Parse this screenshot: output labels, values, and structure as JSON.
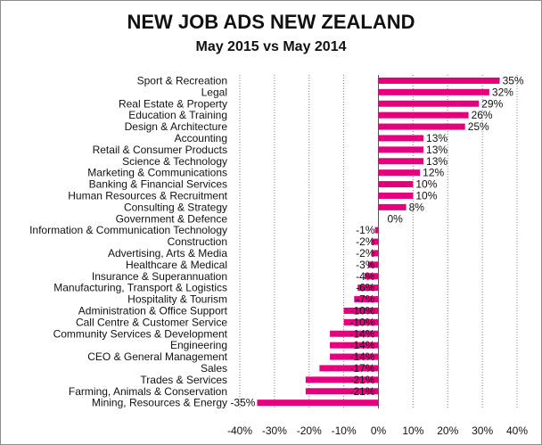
{
  "chart_data": {
    "type": "bar",
    "orientation": "horizontal",
    "title": "NEW JOB ADS NEW ZEALAND",
    "subtitle": "May 2015 vs May 2014",
    "categories": [
      "Sport & Recreation",
      "Legal",
      "Real Estate & Property",
      "Education & Training",
      "Design & Architecture",
      "Accounting",
      "Retail & Consumer Products",
      "Science & Technology",
      "Marketing & Communications",
      "Banking & Financial Services",
      "Human Resources & Recruitment",
      "Consulting & Strategy",
      "Government & Defence",
      "Information & Communication Technology",
      "Construction",
      "Advertising, Arts & Media",
      "Healthcare & Medical",
      "Insurance & Superannuation",
      "Manufacturing, Transport & Logistics",
      "Hospitality & Tourism",
      "Administration & Office Support",
      "Call Centre & Customer Service",
      "Community Services & Development",
      "Engineering",
      "CEO & General Management",
      "Sales",
      "Trades & Services",
      "Farming, Animals & Conservation",
      "Mining, Resources & Energy"
    ],
    "values": [
      35,
      32,
      29,
      26,
      25,
      13,
      13,
      13,
      12,
      10,
      10,
      8,
      0,
      -1,
      -2,
      -2,
      -3,
      -4,
      -6,
      -7,
      -10,
      -10,
      -14,
      -14,
      -14,
      -17,
      -21,
      -21,
      -35
    ],
    "value_labels": [
      "35%",
      "32%",
      "29%",
      "26%",
      "25%",
      "13%",
      "13%",
      "13%",
      "12%",
      "10%",
      "10%",
      "8%",
      "0%",
      "-1%",
      "-2%",
      "-2%",
      "-3%",
      "-4%",
      "-6%",
      "-7%",
      "-10%",
      "-10%",
      "-14%",
      "-14%",
      "-14%",
      "-17%",
      "-21%",
      "-21%",
      "-35%"
    ],
    "xlim": [
      -40,
      40
    ],
    "xticks": [
      -40,
      -30,
      -20,
      -10,
      0,
      10,
      20,
      30,
      40
    ],
    "xtick_labels": [
      "-40%",
      "-30%",
      "-20%",
      "-10%",
      "0%",
      "10%",
      "20%",
      "30%",
      "40%"
    ],
    "grid": "vertical dotted",
    "legend": "none",
    "bar_color": "#e5007e"
  }
}
